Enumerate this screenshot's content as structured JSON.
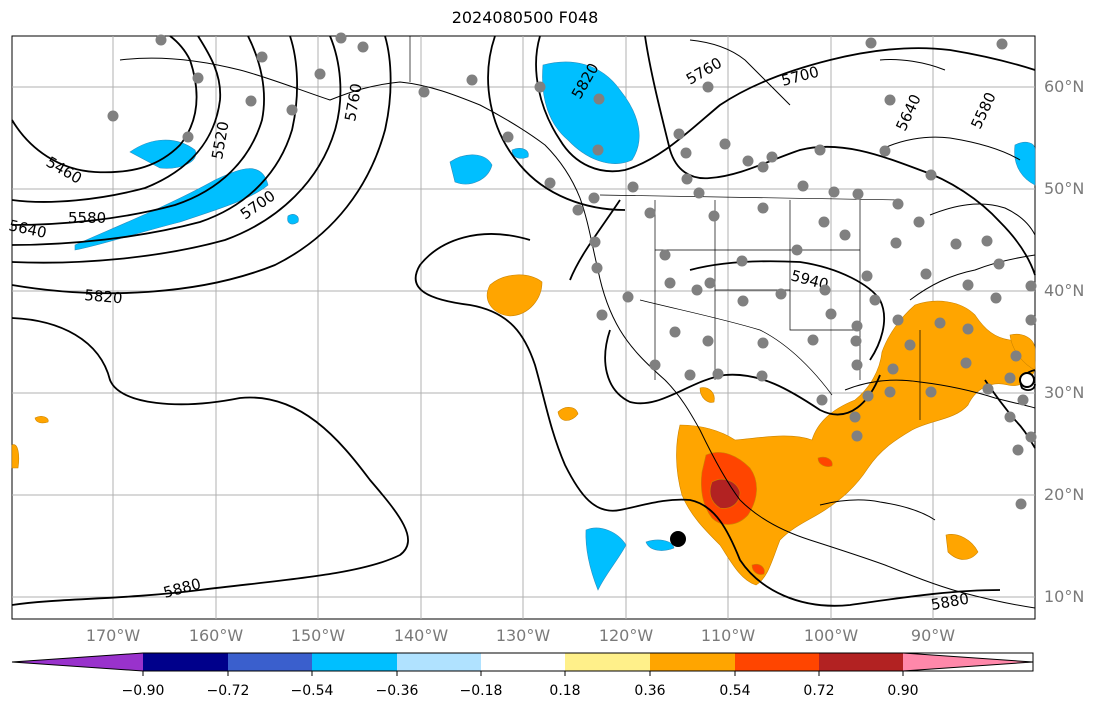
{
  "title": "2024080500 F048",
  "lat_labels": [
    "60°N",
    "50°N",
    "40°N",
    "30°N",
    "20°N",
    "10°N"
  ],
  "lon_labels": [
    "170°W",
    "160°W",
    "150°W",
    "140°W",
    "130°W",
    "120°W",
    "110°W",
    "100°W",
    "90°W"
  ],
  "contour_labels": [
    "5460",
    "5520",
    "5580",
    "5640",
    "5700",
    "5760",
    "5820",
    "5880",
    "5940",
    "5640",
    "5580",
    "5700",
    "5760",
    "5820",
    "5880"
  ],
  "colorbar": {
    "tick_labels": [
      "−0.90",
      "−0.72",
      "−0.54",
      "−0.36",
      "−0.18",
      "0.18",
      "0.36",
      "0.54",
      "0.72",
      "0.90"
    ],
    "colors": [
      "#9932cc",
      "#00008b",
      "#3a5fcd",
      "#00bfff",
      "#b0e2ff",
      "#ffffff",
      "#fff08a",
      "#ffa500",
      "#ff4500",
      "#b22222",
      "#ff88aa"
    ]
  }
}
